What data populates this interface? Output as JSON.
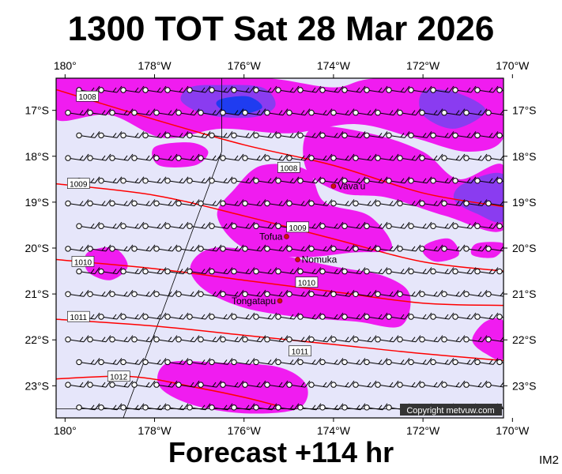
{
  "title": "1300 TOT Sat 28 Mar 2026",
  "footer": "Forecast +114 hr",
  "corner_label": "IM2",
  "copyright": "Copyright metvuw.com",
  "lon_labels": [
    "180°",
    "178°W",
    "176°W",
    "174°W",
    "172°W",
    "170°W"
  ],
  "lat_labels": [
    "17°S",
    "18°S",
    "19°S",
    "20°S",
    "21°S",
    "22°S",
    "23°S"
  ],
  "places": [
    {
      "name": "Vava'u",
      "lon": -174.0,
      "lat": -18.65
    },
    {
      "name": "Tofua",
      "lon": -175.05,
      "lat": -19.75
    },
    {
      "name": "Nomuka",
      "lon": -174.8,
      "lat": -20.25
    },
    {
      "name": "Tongatapu",
      "lon": -175.2,
      "lat": -21.15
    }
  ],
  "isobars": [
    {
      "label": "1008",
      "points": [
        [
          -180.2,
          -16.55
        ],
        [
          -178,
          -17.2
        ],
        [
          -176,
          -17.75
        ],
        [
          -174,
          -18.2
        ],
        [
          -172,
          -18.8
        ],
        [
          -170.2,
          -19.1
        ]
      ]
    },
    {
      "label": "1009",
      "points": [
        [
          -180.2,
          -18.6
        ],
        [
          -178,
          -18.85
        ],
        [
          -176,
          -19.3
        ],
        [
          -174,
          -19.8
        ],
        [
          -172,
          -20.3
        ],
        [
          -170.2,
          -20.5
        ]
      ]
    },
    {
      "label": "1010",
      "points": [
        [
          -180.2,
          -20.25
        ],
        [
          -178,
          -20.45
        ],
        [
          -176,
          -20.7
        ],
        [
          -174,
          -20.95
        ],
        [
          -172,
          -21.2
        ],
        [
          -170.2,
          -21.25
        ]
      ]
    },
    {
      "label": "1011",
      "points": [
        [
          -180.2,
          -21.55
        ],
        [
          -178,
          -21.7
        ],
        [
          -176,
          -21.9
        ],
        [
          -174,
          -22.1
        ],
        [
          -172,
          -22.3
        ],
        [
          -170.2,
          -22.45
        ]
      ]
    },
    {
      "label": "1012",
      "points": [
        [
          -180.2,
          -22.85
        ],
        [
          -178.5,
          -22.8
        ],
        [
          -177,
          -23.05
        ],
        [
          -176,
          -23.25
        ],
        [
          -175.2,
          -23.45
        ]
      ]
    }
  ],
  "isobar_labels": [
    {
      "label": "1008",
      "lon": -179.5,
      "lat": -16.7
    },
    {
      "label": "1008",
      "lon": -175.0,
      "lat": -18.25
    },
    {
      "label": "1009",
      "lon": -179.7,
      "lat": -18.6
    },
    {
      "label": "1009",
      "lon": -174.8,
      "lat": -19.55
    },
    {
      "label": "1010",
      "lon": -179.6,
      "lat": -20.3
    },
    {
      "label": "1010",
      "lon": -174.6,
      "lat": -20.75
    },
    {
      "label": "1011",
      "lon": -179.7,
      "lat": -21.5
    },
    {
      "label": "1011",
      "lon": -174.75,
      "lat": -22.25
    },
    {
      "label": "1012",
      "lon": -178.8,
      "lat": -22.8
    }
  ],
  "precip_blobs": [
    {
      "level": 1,
      "points": [
        [
          -180.2,
          -16.3
        ],
        [
          -177.5,
          -16.3
        ],
        [
          -175.5,
          -16.3
        ],
        [
          -174,
          -16.5
        ],
        [
          -173,
          -16.3
        ],
        [
          -170.2,
          -16.3
        ],
        [
          -170.2,
          -17.6
        ],
        [
          -171,
          -17.9
        ],
        [
          -172.2,
          -17.6
        ],
        [
          -173.5,
          -17.3
        ],
        [
          -175,
          -17.5
        ],
        [
          -176.5,
          -17.4
        ],
        [
          -177.8,
          -17.6
        ],
        [
          -179,
          -17.1
        ],
        [
          -180.2,
          -17.2
        ]
      ]
    },
    {
      "level": 2,
      "points": [
        [
          -177.2,
          -16.5
        ],
        [
          -176.6,
          -16.45
        ],
        [
          -175.6,
          -16.5
        ],
        [
          -175.3,
          -16.9
        ],
        [
          -175.8,
          -17.15
        ],
        [
          -176.8,
          -17.1
        ],
        [
          -177.4,
          -16.8
        ]
      ]
    },
    {
      "level": 3,
      "points": [
        [
          -176.5,
          -16.75
        ],
        [
          -175.9,
          -16.7
        ],
        [
          -175.6,
          -16.95
        ],
        [
          -176.2,
          -17.1
        ],
        [
          -176.6,
          -16.9
        ]
      ]
    },
    {
      "level": 2,
      "points": [
        [
          -172.0,
          -16.6
        ],
        [
          -171.3,
          -16.6
        ],
        [
          -170.6,
          -17.0
        ],
        [
          -171.3,
          -17.4
        ],
        [
          -172.0,
          -17.1
        ]
      ]
    },
    {
      "level": 1,
      "points": [
        [
          -174.5,
          -17.4
        ],
        [
          -173.2,
          -17.5
        ],
        [
          -172.0,
          -17.9
        ],
        [
          -171.2,
          -18.5
        ],
        [
          -170.2,
          -18.2
        ],
        [
          -170.2,
          -19.6
        ],
        [
          -171.5,
          -19.3
        ],
        [
          -172.8,
          -18.9
        ],
        [
          -173.8,
          -18.8
        ],
        [
          -174.6,
          -18.3
        ]
      ]
    },
    {
      "level": 2,
      "points": [
        [
          -171.1,
          -18.6
        ],
        [
          -170.2,
          -18.4
        ],
        [
          -170.2,
          -19.4
        ],
        [
          -170.8,
          -19.25
        ],
        [
          -171.3,
          -18.95
        ]
      ]
    },
    {
      "level": 1,
      "points": [
        [
          -175.6,
          -18.2
        ],
        [
          -174.6,
          -18.3
        ],
        [
          -174.2,
          -19.0
        ],
        [
          -173.2,
          -19.3
        ],
        [
          -172.7,
          -20.0
        ],
        [
          -173.6,
          -20.1
        ],
        [
          -174.8,
          -20.2
        ],
        [
          -176.0,
          -20.0
        ],
        [
          -176.6,
          -19.3
        ],
        [
          -176.2,
          -18.7
        ]
      ]
    },
    {
      "level": 1,
      "points": [
        [
          -178.0,
          -17.8
        ],
        [
          -177.2,
          -17.7
        ],
        [
          -176.8,
          -17.9
        ],
        [
          -177.1,
          -18.2
        ],
        [
          -177.9,
          -18.2
        ]
      ]
    },
    {
      "level": 1,
      "points": [
        [
          -176.7,
          -20.0
        ],
        [
          -175.5,
          -20.1
        ],
        [
          -174.0,
          -20.4
        ],
        [
          -172.9,
          -20.6
        ],
        [
          -172.3,
          -21.0
        ],
        [
          -172.5,
          -21.7
        ],
        [
          -173.5,
          -21.6
        ],
        [
          -174.8,
          -21.5
        ],
        [
          -176.0,
          -21.3
        ],
        [
          -176.9,
          -20.9
        ],
        [
          -177.2,
          -20.4
        ]
      ]
    },
    {
      "level": 1,
      "points": [
        [
          -179.5,
          -20.1
        ],
        [
          -178.9,
          -20.0
        ],
        [
          -178.6,
          -20.4
        ],
        [
          -179.0,
          -20.7
        ],
        [
          -179.5,
          -20.5
        ]
      ]
    },
    {
      "level": 1,
      "points": [
        [
          -171.9,
          -19.9
        ],
        [
          -171.4,
          -19.8
        ],
        [
          -171.2,
          -20.15
        ],
        [
          -171.7,
          -20.3
        ],
        [
          -172.0,
          -20.1
        ]
      ]
    },
    {
      "level": 1,
      "points": [
        [
          -170.2,
          -19.9
        ],
        [
          -170.8,
          -19.9
        ],
        [
          -170.9,
          -20.15
        ],
        [
          -170.4,
          -20.2
        ]
      ]
    },
    {
      "level": 1,
      "points": [
        [
          -177.7,
          -22.5
        ],
        [
          -176.5,
          -22.5
        ],
        [
          -175.2,
          -22.6
        ],
        [
          -174.6,
          -23.0
        ],
        [
          -174.8,
          -23.5
        ],
        [
          -176.0,
          -23.6
        ],
        [
          -177.2,
          -23.4
        ],
        [
          -177.9,
          -23.0
        ]
      ]
    },
    {
      "level": 1,
      "points": [
        [
          -170.6,
          -21.6
        ],
        [
          -170.2,
          -21.6
        ],
        [
          -170.2,
          -22.4
        ],
        [
          -170.6,
          -22.3
        ],
        [
          -170.9,
          -22.0
        ]
      ]
    }
  ],
  "colors": {
    "background_field": "#e6e6fa",
    "level1": "#f01cf0",
    "level2": "#8a3cf0",
    "level3": "#1f3cf0",
    "isobar": "#ff0000",
    "place_dot": "#d01010"
  },
  "grid_lines": [
    {
      "points": [
        [
          -176.5,
          -16.3
        ],
        [
          -176.5,
          -17.9
        ],
        [
          -178.7,
          -23.7
        ]
      ]
    },
    {
      "points": [
        [
          -180.2,
          -23.5
        ],
        [
          -170.2,
          -23.5
        ]
      ]
    }
  ]
}
